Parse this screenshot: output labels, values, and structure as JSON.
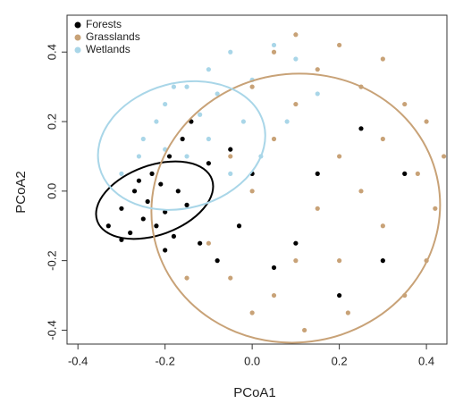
{
  "chart_data": {
    "type": "scatter",
    "x_label": "PCoA1",
    "y_label": "PCoA2",
    "xlim": [
      -0.425,
      0.447
    ],
    "ylim": [
      -0.44,
      0.506
    ],
    "xticks": [
      -0.4,
      -0.2,
      {
        "value": 0,
        "label": "0.0"
      },
      0.2,
      0.4
    ],
    "yticks": [
      -0.4,
      -0.2,
      {
        "value": 0,
        "label": "0.0"
      },
      0.2,
      0.4
    ],
    "legend": "top-left",
    "series": [
      {
        "name": "Forests",
        "color": "#000000",
        "x": [
          -0.33,
          -0.3,
          -0.28,
          -0.27,
          -0.25,
          -0.24,
          -0.23,
          -0.22,
          -0.21,
          -0.2,
          -0.19,
          -0.18,
          -0.17,
          -0.16,
          -0.15,
          -0.14,
          -0.12,
          -0.1,
          -0.08,
          -0.05,
          -0.03,
          0.0,
          0.05,
          0.1,
          0.15,
          0.2,
          0.25,
          0.3,
          -0.3,
          -0.26,
          -0.2,
          0.35
        ],
        "y": [
          -0.1,
          -0.05,
          -0.12,
          0.0,
          -0.08,
          -0.03,
          0.05,
          -0.1,
          0.02,
          -0.06,
          0.1,
          -0.13,
          0.0,
          0.15,
          -0.04,
          0.2,
          -0.15,
          0.08,
          -0.2,
          0.12,
          -0.1,
          0.05,
          -0.22,
          -0.15,
          0.05,
          -0.3,
          0.18,
          -0.2,
          -0.14,
          0.03,
          -0.17,
          0.05
        ],
        "ellipse": {
          "center": [
            -0.224,
            -0.026
          ],
          "radii": [
            0.14,
            0.1
          ],
          "angle": -20
        }
      },
      {
        "name": "Grasslands",
        "color": "#c8a277",
        "x": [
          0.0,
          0.05,
          0.1,
          0.15,
          0.2,
          0.25,
          0.3,
          0.35,
          0.4,
          0.44,
          0.42,
          0.4,
          0.35,
          0.3,
          0.25,
          0.2,
          0.15,
          0.1,
          0.05,
          0.0,
          -0.05,
          -0.1,
          -0.15,
          0.0,
          0.05,
          0.1,
          0.2,
          0.3,
          0.12,
          -0.05,
          0.38,
          0.22
        ],
        "y": [
          0.3,
          0.4,
          0.45,
          0.35,
          0.42,
          0.3,
          0.38,
          0.25,
          0.2,
          0.1,
          -0.05,
          -0.2,
          -0.3,
          -0.1,
          0.0,
          0.1,
          -0.05,
          -0.2,
          -0.3,
          -0.35,
          -0.25,
          -0.15,
          -0.25,
          0.0,
          0.15,
          0.25,
          -0.2,
          0.15,
          -0.4,
          0.1,
          0.05,
          -0.35
        ],
        "ellipse": {
          "center": [
            0.1,
            -0.049
          ],
          "radii": [
            0.332,
            0.386
          ],
          "angle": -10
        }
      },
      {
        "name": "Wetlands",
        "color": "#a9d6e8",
        "x": [
          -0.25,
          -0.22,
          -0.2,
          -0.18,
          -0.15,
          -0.12,
          -0.1,
          -0.08,
          -0.05,
          -0.02,
          0.0,
          0.05,
          0.1,
          -0.2,
          -0.26,
          -0.3,
          -0.1,
          -0.05,
          0.02,
          -0.15,
          0.15,
          0.08
        ],
        "y": [
          0.15,
          0.2,
          0.25,
          0.3,
          0.1,
          0.22,
          0.35,
          0.28,
          0.4,
          0.2,
          0.32,
          0.42,
          0.38,
          0.12,
          0.1,
          0.05,
          0.15,
          0.05,
          0.1,
          0.3,
          0.28,
          0.2
        ],
        "ellipse": {
          "center": [
            -0.162,
            0.131
          ],
          "radii": [
            0.195,
            0.18
          ],
          "angle": -15
        }
      }
    ]
  }
}
